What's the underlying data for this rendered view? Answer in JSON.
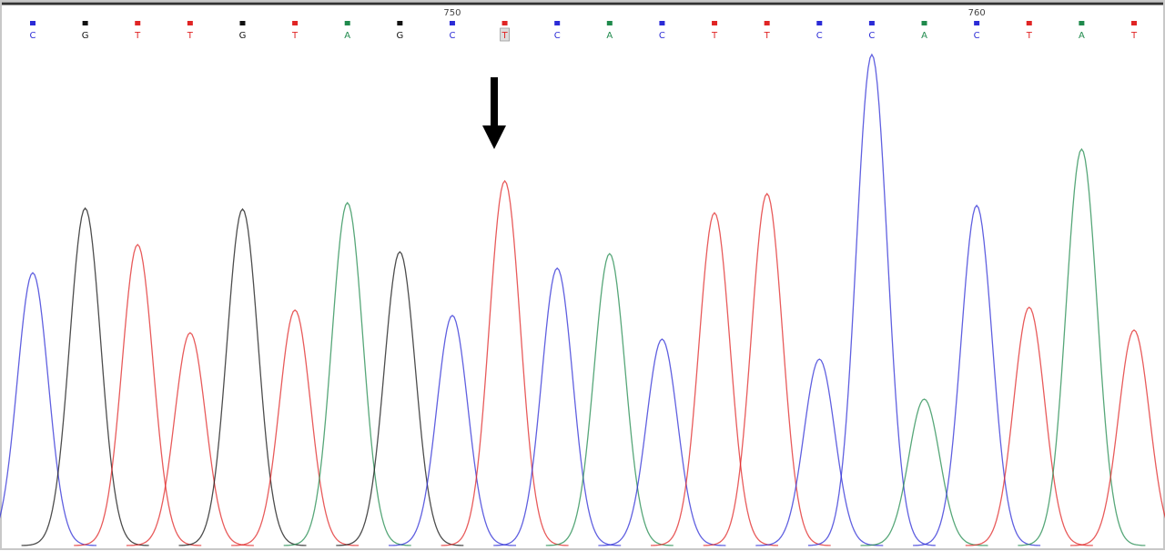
{
  "chart_data": {
    "type": "chromatogram",
    "categories": [
      "C",
      "G",
      "T",
      "T",
      "G",
      "T",
      "A",
      "G",
      "C",
      "T",
      "C",
      "A",
      "C",
      "T",
      "T",
      "C",
      "C",
      "A",
      "C",
      "T",
      "A",
      "T"
    ],
    "values": [
      300,
      371,
      331,
      234,
      370,
      259,
      377,
      323,
      253,
      401,
      305,
      321,
      227,
      366,
      387,
      205,
      540,
      161,
      374,
      262,
      436,
      237
    ],
    "position_labels": [
      null,
      null,
      null,
      null,
      null,
      null,
      null,
      null,
      "750",
      null,
      null,
      null,
      null,
      null,
      null,
      null,
      null,
      null,
      "760",
      null,
      null,
      null
    ],
    "colors": {
      "A": "#1f8a4c",
      "C": "#2b2bd6",
      "G": "#111111",
      "T": "#e02424"
    },
    "highlight": 9
  }
}
